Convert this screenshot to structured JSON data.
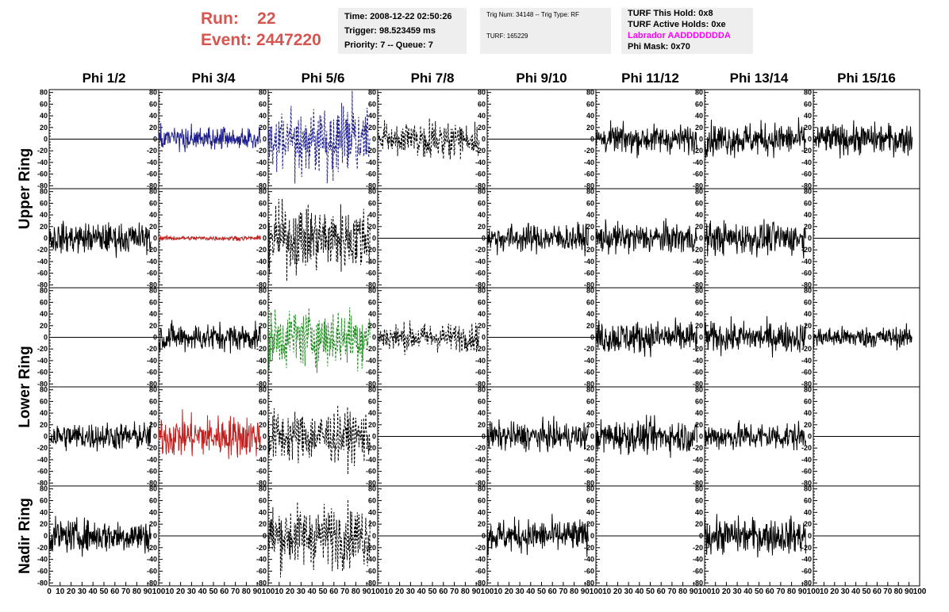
{
  "header": {
    "run_label": "Run:",
    "run_value": "22",
    "event_label": "Event:",
    "event_value": "2447220",
    "run_color": "#d8544f"
  },
  "info_time": {
    "time": "Time: 2008-12-22 02:50:26",
    "trigger": "Trigger: 98.523459 ms",
    "priority": "Priority: 7 -- Queue: 7"
  },
  "info_trig": {
    "trig": "Trig Num: 34148 -- Trig Type: RF",
    "turf": "TURF: 165229"
  },
  "info_turf": {
    "this_hold": "TURF This Hold: 0x8",
    "active_holds": "TURF Active Holds: 0xe",
    "labrador": "Labrador AADDDDDDDA",
    "phi_mask": "Phi Mask: 0x70"
  },
  "chart_data": {
    "type": "line",
    "columns": [
      "Phi 1/2",
      "Phi 3/4",
      "Phi 5/6",
      "Phi 7/8",
      "Phi 9/10",
      "Phi 11/12",
      "Phi 13/14",
      "Phi 15/16"
    ],
    "ring_labels": [
      "Upper Ring",
      "Lower Ring",
      "Nadir Ring"
    ],
    "ylim": [
      -85,
      85
    ],
    "yticks": [
      -80,
      -60,
      -40,
      -20,
      0,
      20,
      40,
      60,
      80
    ],
    "ytick_labels": [
      "-80",
      "-60",
      "-40",
      "-20",
      "0",
      "20",
      "40",
      "60",
      "80"
    ],
    "xlim": [
      0,
      100
    ],
    "xticks": [
      0,
      10,
      20,
      30,
      40,
      50,
      60,
      70,
      80,
      90,
      100
    ],
    "xtick_labels": [
      "0",
      "10",
      "20",
      "30",
      "40",
      "50",
      "60",
      "70",
      "80",
      "90",
      "100"
    ],
    "colors": {
      "black": "#000000",
      "blue": "#1f1f8f",
      "red": "#c0201e",
      "green": "#208c20"
    },
    "traces": [
      [
        "flat",
        "noise:blue:10",
        "noise:blue:dash:28",
        "noise:black:dash:14",
        "flat",
        "noise:black:12",
        "noise:black:14",
        "noise:black:13"
      ],
      [
        "noise:black:13",
        "noise:red:2",
        "noise:black:dash:28",
        "flat",
        "noise:black:12",
        "noise:black:13",
        "noise:black:14",
        "flat"
      ],
      [
        "flat",
        "noise:black:12",
        "noise:green:dash:25",
        "noise:black:dash:12",
        "flat",
        "noise:black:14",
        "noise:black:13",
        "noise:black:9"
      ],
      [
        "noise:black:12",
        "noise:red:18",
        "noise:black:dash:22",
        "flat",
        "noise:black:12",
        "noise:black:14",
        "noise:black:12",
        "flat"
      ],
      [
        "noise:black:14",
        "flat",
        "noise:black:dash:26",
        "flat",
        "noise:black:14",
        "flat",
        "noise:black:15",
        "flat"
      ]
    ]
  }
}
